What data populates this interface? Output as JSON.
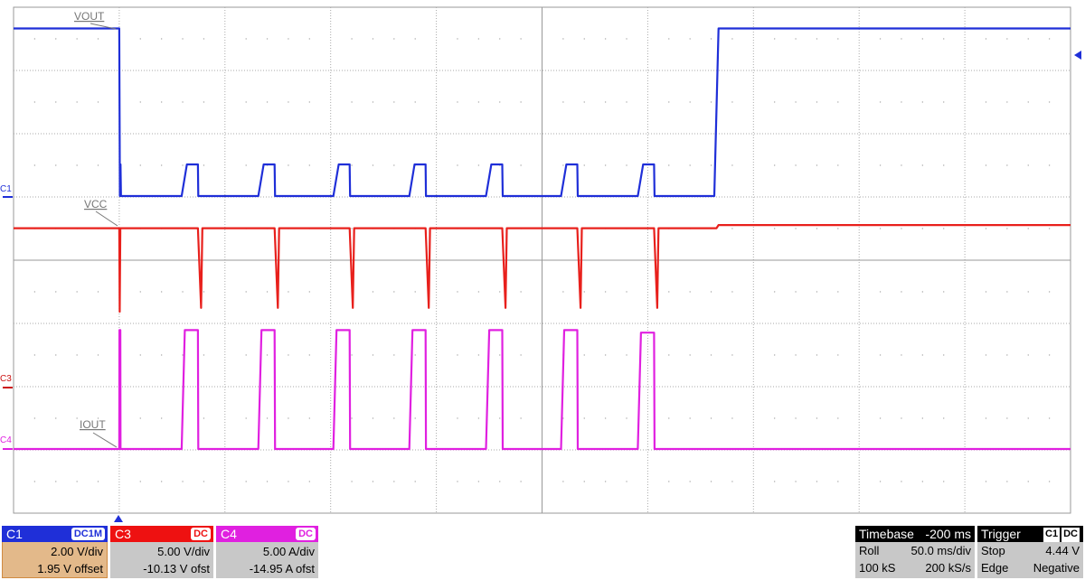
{
  "chart_data": {
    "type": "line",
    "title": "",
    "xlabel": "",
    "ylabel": "",
    "x_unit": "ms",
    "xlim": [
      -50,
      450
    ],
    "grid": true,
    "grid_divisions": {
      "horizontal": 10,
      "vertical": 8
    },
    "series": [
      {
        "name": "VOUT",
        "channel": "C1",
        "unit": "V",
        "color": "#1f2fd8",
        "points": [
          [
            -50,
            5.3
          ],
          [
            0,
            5.3
          ],
          [
            0.3,
            0
          ],
          [
            0.6,
            1.0
          ],
          [
            0.8,
            0
          ],
          [
            29.5,
            0
          ],
          [
            32,
            1.0
          ],
          [
            37.2,
            1.0
          ],
          [
            37.4,
            0
          ],
          [
            65.8,
            0
          ],
          [
            68.3,
            1.0
          ],
          [
            73.5,
            1.0
          ],
          [
            73.7,
            0
          ],
          [
            101.3,
            0
          ],
          [
            103.8,
            1.0
          ],
          [
            109,
            1.0
          ],
          [
            109.2,
            0
          ],
          [
            137.2,
            0
          ],
          [
            139.7,
            1.0
          ],
          [
            144.9,
            1.0
          ],
          [
            145.1,
            0
          ],
          [
            173.5,
            0
          ],
          [
            176,
            1.0
          ],
          [
            181.2,
            1.0
          ],
          [
            181.4,
            0
          ],
          [
            209,
            0
          ],
          [
            211.5,
            1.0
          ],
          [
            216.7,
            1.0
          ],
          [
            216.9,
            0
          ],
          [
            245.3,
            0
          ],
          [
            247.8,
            1.0
          ],
          [
            253,
            1.0
          ],
          [
            253.2,
            0
          ],
          [
            281.5,
            0
          ],
          [
            283.5,
            5.3
          ],
          [
            450,
            5.3
          ]
        ]
      },
      {
        "name": "VCC",
        "channel": "C3",
        "unit": "V",
        "color": "#e8201c",
        "points": [
          [
            -50,
            12.6
          ],
          [
            0,
            12.6
          ],
          [
            0.2,
            6.0
          ],
          [
            0.5,
            12.6
          ],
          [
            37.2,
            12.6
          ],
          [
            38.7,
            6.3
          ],
          [
            39.3,
            12.6
          ],
          [
            73.5,
            12.6
          ],
          [
            75,
            6.3
          ],
          [
            75.6,
            12.6
          ],
          [
            109,
            12.6
          ],
          [
            110.5,
            6.3
          ],
          [
            111.1,
            12.6
          ],
          [
            144.9,
            12.6
          ],
          [
            146.4,
            6.3
          ],
          [
            147,
            12.6
          ],
          [
            181.2,
            12.6
          ],
          [
            182.7,
            6.3
          ],
          [
            183.3,
            12.6
          ],
          [
            216.7,
            12.6
          ],
          [
            218.2,
            6.3
          ],
          [
            218.8,
            12.6
          ],
          [
            253,
            12.6
          ],
          [
            254.5,
            6.3
          ],
          [
            255.1,
            12.6
          ],
          [
            282.5,
            12.6
          ],
          [
            283.5,
            12.85
          ],
          [
            450,
            12.85
          ]
        ]
      },
      {
        "name": "IOUT",
        "channel": "C4",
        "unit": "A",
        "color": "#e020e0",
        "points": [
          [
            -50,
            0
          ],
          [
            0,
            0
          ],
          [
            0.1,
            9.4
          ],
          [
            0.5,
            9.4
          ],
          [
            0.6,
            0
          ],
          [
            29.5,
            0
          ],
          [
            31,
            9.4
          ],
          [
            37.2,
            9.4
          ],
          [
            37.4,
            0
          ],
          [
            65.8,
            0
          ],
          [
            67.3,
            9.4
          ],
          [
            73.5,
            9.4
          ],
          [
            73.7,
            0
          ],
          [
            101.3,
            0
          ],
          [
            102.8,
            9.4
          ],
          [
            109,
            9.4
          ],
          [
            109.2,
            0
          ],
          [
            137.2,
            0
          ],
          [
            138.7,
            9.4
          ],
          [
            144.9,
            9.4
          ],
          [
            145.1,
            0
          ],
          [
            173.5,
            0
          ],
          [
            175,
            9.4
          ],
          [
            181.2,
            9.4
          ],
          [
            181.4,
            0
          ],
          [
            209,
            0
          ],
          [
            210.5,
            9.4
          ],
          [
            216.7,
            9.4
          ],
          [
            216.9,
            0
          ],
          [
            245.3,
            0
          ],
          [
            246.8,
            9.2
          ],
          [
            253,
            9.2
          ],
          [
            253.2,
            0
          ],
          [
            450,
            0
          ]
        ]
      }
    ],
    "annotations": [
      "VOUT",
      "VCC",
      "IOUT"
    ],
    "channel_markers": [
      "C1",
      "C3",
      "C4"
    ]
  },
  "channels": [
    {
      "name": "C1",
      "coupling": "DC1M",
      "scale": "2.00 V/div",
      "offset": "1.95 V offset",
      "color": "#1f2fd8",
      "body_color": "#e3b98a"
    },
    {
      "name": "C3",
      "coupling": "DC",
      "scale": "5.00 V/div",
      "offset": "-10.13 V ofst",
      "color": "#ee1111",
      "body_color": "#c8c8c8"
    },
    {
      "name": "C4",
      "coupling": "DC",
      "scale": "5.00 A/div",
      "offset": "-14.95 A ofst",
      "color": "#e020e0",
      "body_color": "#c8c8c8"
    }
  ],
  "timebase": {
    "label": "Timebase",
    "delay": "-200 ms",
    "mode": "Roll",
    "scale": "50.0 ms/div",
    "samples": "100 kS",
    "rate": "200 kS/s"
  },
  "trigger": {
    "label": "Trigger",
    "source": "C1",
    "coupling": "DC",
    "state": "Stop",
    "level": "4.44 V",
    "type": "Edge",
    "slope": "Negative"
  }
}
